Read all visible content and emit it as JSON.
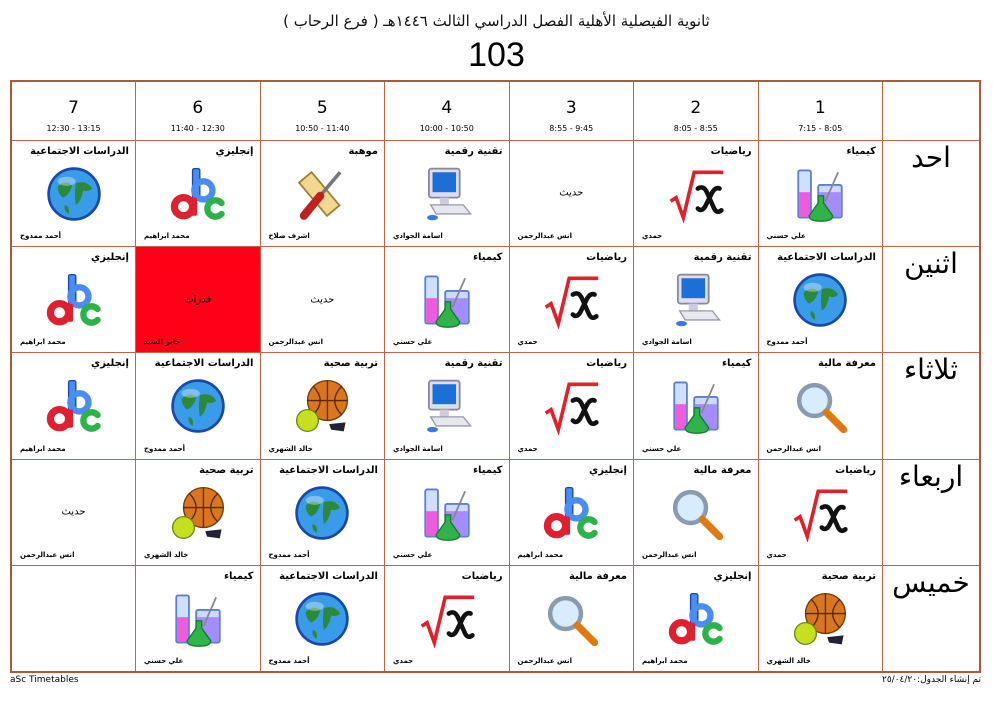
{
  "header": {
    "title": "ثانوية الفيصلية الأهلية الفصل الدراسي الثالث ١٤٤٦هـ  ( فرع الرحاب )",
    "room": "103"
  },
  "periods": [
    {
      "num": "1",
      "time": "7:15 - 8:05"
    },
    {
      "num": "2",
      "time": "8:05 - 8:55"
    },
    {
      "num": "3",
      "time": "8:55 - 9:45"
    },
    {
      "num": "4",
      "time": "10:00 - 10:50"
    },
    {
      "num": "5",
      "time": "10:50 - 11:40"
    },
    {
      "num": "6",
      "time": "11:40 - 12:30"
    },
    {
      "num": "7",
      "time": "12:30 - 13:15"
    }
  ],
  "colors": {
    "highlight": "#ff0016",
    "border": "#c0654b"
  },
  "days": [
    {
      "name": "احد",
      "cells": [
        {
          "subject": "كيمياء",
          "teacher": "علي حسني",
          "icon": "chemistry-icon"
        },
        {
          "subject": "رياضيات",
          "teacher": "حمدي",
          "icon": "math-icon"
        },
        {
          "subject": "حديث",
          "teacher": "انس عبدالرحمن",
          "icon": ""
        },
        {
          "subject": "تقنية رقمية",
          "teacher": "اسامة الجوادي",
          "icon": "computer-icon"
        },
        {
          "subject": "موهبة",
          "teacher": "اشرف صلاح",
          "icon": "tools-icon"
        },
        {
          "subject": "إنجليزي",
          "teacher": "محمد ابراهيم",
          "icon": "abc-icon"
        },
        {
          "subject": "الدراسات الاجتماعية",
          "teacher": "أحمد ممدوح",
          "icon": "globe-icon"
        }
      ]
    },
    {
      "name": "اثنين",
      "cells": [
        {
          "subject": "الدراسات الاجتماعية",
          "teacher": "أحمد ممدوح",
          "icon": "globe-icon"
        },
        {
          "subject": "تقنية رقمية",
          "teacher": "اسامة الجوادي",
          "icon": "computer-icon"
        },
        {
          "subject": "رياضيات",
          "teacher": "حمدي",
          "icon": "math-icon"
        },
        {
          "subject": "كيمياء",
          "teacher": "علي حسني",
          "icon": "chemistry-icon"
        },
        {
          "subject": "حديث",
          "teacher": "انس عبدالرحمن",
          "icon": ""
        },
        {
          "subject": "قدرات",
          "teacher": "جابر السيد",
          "icon": "",
          "highlight": true
        },
        {
          "subject": "إنجليزي",
          "teacher": "محمد ابراهيم",
          "icon": "abc-icon"
        }
      ]
    },
    {
      "name": "ثلاثاء",
      "cells": [
        {
          "subject": "معرفة مالية",
          "teacher": "انس عبدالرحمن",
          "icon": "magnifier-icon"
        },
        {
          "subject": "كيمياء",
          "teacher": "علي حسني",
          "icon": "chemistry-icon"
        },
        {
          "subject": "رياضيات",
          "teacher": "حمدي",
          "icon": "math-icon"
        },
        {
          "subject": "تقنية رقمية",
          "teacher": "اسامة الجوادي",
          "icon": "computer-icon"
        },
        {
          "subject": "تربية صحية",
          "teacher": "خالد الشهري",
          "icon": "sports-ball-icon"
        },
        {
          "subject": "الدراسات الاجتماعية",
          "teacher": "أحمد ممدوح",
          "icon": "globe-icon"
        },
        {
          "subject": "إنجليزي",
          "teacher": "محمد ابراهيم",
          "icon": "abc-icon"
        }
      ]
    },
    {
      "name": "اربعاء",
      "cells": [
        {
          "subject": "رياضيات",
          "teacher": "حمدي",
          "icon": "math-icon"
        },
        {
          "subject": "معرفة مالية",
          "teacher": "انس عبدالرحمن",
          "icon": "magnifier-icon"
        },
        {
          "subject": "إنجليزي",
          "teacher": "محمد ابراهيم",
          "icon": "abc-icon"
        },
        {
          "subject": "كيمياء",
          "teacher": "علي حسني",
          "icon": "chemistry-icon"
        },
        {
          "subject": "الدراسات الاجتماعية",
          "teacher": "أحمد ممدوح",
          "icon": "globe-icon"
        },
        {
          "subject": "تربية صحية",
          "teacher": "خالد الشهري",
          "icon": "sports-ball-icon"
        },
        {
          "subject": "حديث",
          "teacher": "انس عبدالرحمن",
          "icon": ""
        }
      ]
    },
    {
      "name": "خميس",
      "cells": [
        {
          "subject": "تربية صحية",
          "teacher": "خالد الشهري",
          "icon": "sports-ball-icon"
        },
        {
          "subject": "إنجليزي",
          "teacher": "محمد ابراهيم",
          "icon": "abc-icon"
        },
        {
          "subject": "معرفة مالية",
          "teacher": "انس عبدالرحمن",
          "icon": "magnifier-icon"
        },
        {
          "subject": "رياضيات",
          "teacher": "حمدي",
          "icon": "math-icon"
        },
        {
          "subject": "الدراسات الاجتماعية",
          "teacher": "أحمد ممدوح",
          "icon": "globe-icon"
        },
        {
          "subject": "كيمياء",
          "teacher": "علي حسني",
          "icon": "chemistry-icon"
        },
        null
      ]
    }
  ],
  "footer": {
    "generator": "aSc Timetables",
    "created": "تم إنشاء الجدول:٢٥/٠٤/٢٠"
  }
}
